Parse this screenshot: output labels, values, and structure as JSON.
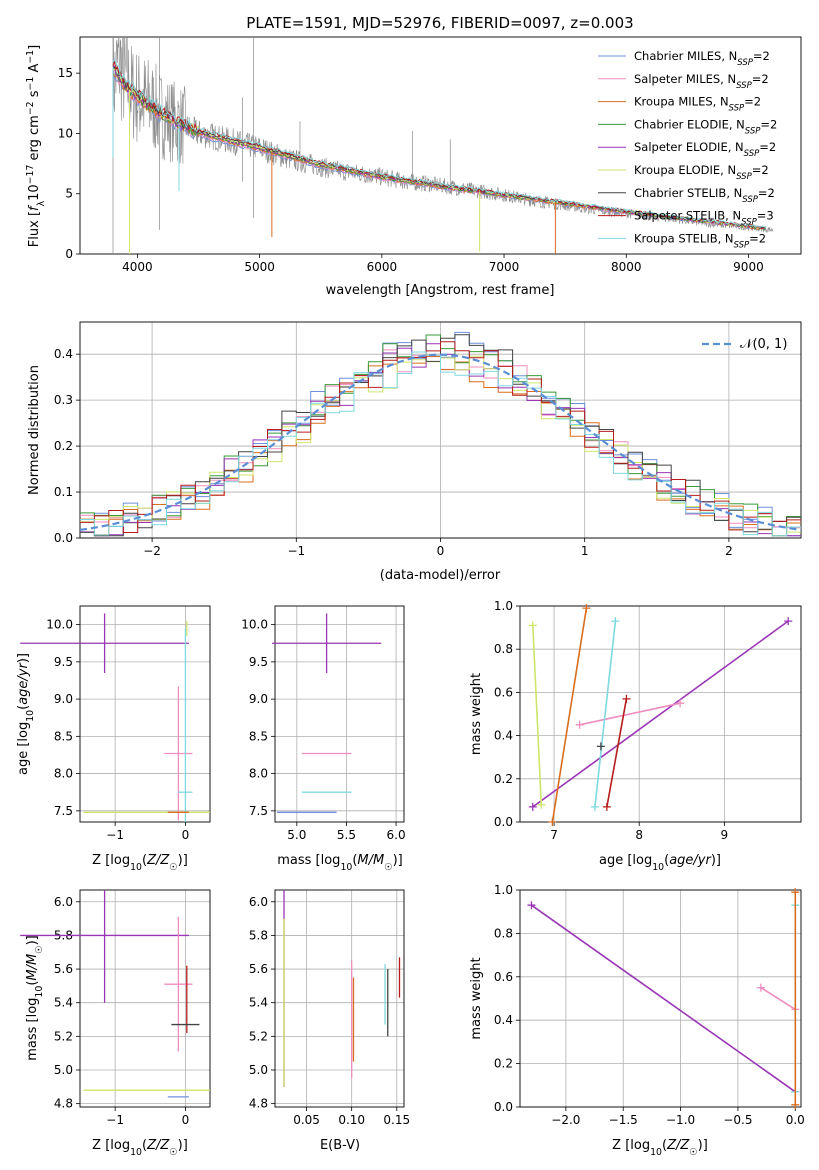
{
  "chart_data": [
    {
      "type": "line",
      "title": "PLATE=1591, MJD=52976, FIBERID=0097, z=0.003",
      "xlabel": "wavelength [Angstrom, rest frame]",
      "ylabel": "Flux [fλ10⁻¹⁷ erg cm⁻² s⁻¹ A⁻¹]",
      "xlim": [
        3530,
        9430
      ],
      "ylim": [
        0,
        18
      ],
      "xticks": [
        4000,
        5000,
        6000,
        7000,
        8000,
        9000
      ],
      "yticks": [
        0,
        5,
        10,
        15
      ],
      "grid": false,
      "legend": "top-right",
      "data_series": {
        "name": "",
        "x": [
          3800,
          3850,
          3900,
          3950,
          4000,
          4100,
          4200,
          4300,
          4400,
          4500,
          4600,
          4700,
          4800,
          4900,
          5000,
          5200,
          5400,
          5600,
          5800,
          6000,
          6200,
          6400,
          6600,
          6800,
          7000,
          7200,
          7400,
          7600,
          7800,
          8000,
          8200,
          8400,
          8600,
          8800,
          9000,
          9200
        ],
        "values": [
          14.0,
          16.0,
          14.5,
          13.5,
          13.0,
          12.5,
          11.5,
          11.0,
          10.5,
          10.0,
          9.8,
          9.5,
          9.3,
          9.0,
          8.8,
          8.0,
          7.5,
          7.0,
          6.7,
          6.4,
          6.0,
          5.8,
          5.5,
          5.2,
          4.9,
          4.5,
          4.2,
          3.9,
          3.6,
          3.4,
          3.1,
          2.9,
          2.6,
          2.4,
          2.2,
          2.0
        ]
      },
      "series": [
        {
          "name": "Chabrier MILES, N_SSP=2",
          "color": "#6f8fdc"
        },
        {
          "name": "Salpeter MILES, N_SSP=2",
          "color": "#f08cbf"
        },
        {
          "name": "Kroupa MILES, N_SSP=2",
          "color": "#d96e1e"
        },
        {
          "name": "Chabrier ELODIE, N_SSP=2",
          "color": "#3a9b3a"
        },
        {
          "name": "Salpeter ELODIE, N_SSP=2",
          "color": "#9a35b5"
        },
        {
          "name": "Kroupa ELODIE, N_SSP=2",
          "color": "#cde66a"
        },
        {
          "name": "Chabrier STELIB, N_SSP=2",
          "color": "#444444"
        },
        {
          "name": "Salpeter STELIB, N_SSP=3",
          "color": "#b71c1c"
        },
        {
          "name": "Kroupa STELIB, N_SSP=2",
          "color": "#7fd9e0"
        }
      ],
      "model_curve": {
        "x": [
          3800,
          3900,
          4000,
          4200,
          4400,
          4600,
          4800,
          5000,
          5500,
          6000,
          6500,
          7000,
          7500,
          8000,
          8500,
          9000,
          9150
        ],
        "values": [
          15.5,
          14.0,
          13.0,
          11.6,
          10.5,
          9.8,
          9.3,
          8.8,
          7.4,
          6.4,
          5.6,
          4.9,
          4.2,
          3.5,
          2.9,
          2.3,
          2.1
        ]
      },
      "annotations": {
        "legend_labels": [
          {
            "base": "Chabrier MILES, N",
            "sub": "SSP",
            "tail": "=2"
          },
          {
            "base": "Salpeter MILES, N",
            "sub": "SSP",
            "tail": "=2"
          },
          {
            "base": "Kroupa MILES, N",
            "sub": "SSP",
            "tail": "=2"
          },
          {
            "base": "Chabrier ELODIE, N",
            "sub": "SSP",
            "tail": "=2"
          },
          {
            "base": "Salpeter ELODIE, N",
            "sub": "SSP",
            "tail": "=2"
          },
          {
            "base": "Kroupa ELODIE, N",
            "sub": "SSP",
            "tail": "=2"
          },
          {
            "base": "Chabrier STELIB, N",
            "sub": "SSP",
            "tail": "=2"
          },
          {
            "base": "Salpeter STELIB, N",
            "sub": "SSP",
            "tail": "=3"
          },
          {
            "base": "Kroupa STELIB, N",
            "sub": "SSP",
            "tail": "=2"
          }
        ]
      }
    },
    {
      "type": "line",
      "title": "",
      "xlabel": "(data-model)/error",
      "ylabel": "Normed distribution",
      "xlim": [
        -2.5,
        2.5
      ],
      "ylim": [
        0,
        0.47
      ],
      "xticks": [
        -2,
        -1,
        0,
        1,
        2
      ],
      "yticks": [
        0.0,
        0.1,
        0.2,
        0.3,
        0.4
      ],
      "grid": true,
      "legend": "top-right",
      "legend_label": "𝒩(0, 1)",
      "gaussian": {
        "name": "N(0,1)",
        "color": "#5a8fd6",
        "style": "dashed"
      },
      "histogram_colors": [
        "#6f8fdc",
        "#f08cbf",
        "#d96e1e",
        "#3a9b3a",
        "#9a35b5",
        "#cde66a",
        "#444444",
        "#b71c1c",
        "#7fd9e0"
      ]
    },
    {
      "type": "scatter",
      "xlabel": "Z [log10(Z/Z☉)]",
      "ylabel": "age  [log10(age/yr)]",
      "xlim": [
        -1.5,
        0.35
      ],
      "ylim": [
        7.35,
        10.25
      ],
      "xticks": [
        -1,
        0
      ],
      "yticks": [
        7.5,
        8.0,
        8.5,
        9.0,
        9.5,
        10.0
      ],
      "grid": true,
      "points": [
        {
          "x": -1.15,
          "y": 9.75,
          "xerr": 1.2,
          "yerr": 0.4,
          "color": "#9a35b5"
        },
        {
          "x": -0.1,
          "y": 8.27,
          "xerr": 0.2,
          "yerr": 0.9,
          "color": "#f08cbf"
        },
        {
          "x": 0.0,
          "y": 7.48,
          "xerr": 1.45,
          "yerr": 0.0,
          "color": "#cde66a"
        },
        {
          "x": 0.02,
          "y": 9.95,
          "xerr": 0.0,
          "yerr": 0.1,
          "color": "#cde66a"
        },
        {
          "x": 0.0,
          "y": 7.75,
          "xerr": 0.1,
          "yerr": 2.2,
          "color": "#7fd9e0"
        },
        {
          "x": -0.1,
          "y": 7.48,
          "xerr": 0.15,
          "yerr": 0.0,
          "color": "#d96e1e"
        }
      ]
    },
    {
      "type": "scatter",
      "xlabel": "mass [log10(M/M☉)]",
      "ylabel": "",
      "xlim": [
        4.78,
        6.08
      ],
      "ylim": [
        7.35,
        10.25
      ],
      "xticks": [
        5.0,
        5.5,
        6.0
      ],
      "yticks": [
        7.5,
        8.0,
        8.5,
        9.0,
        9.5,
        10.0
      ],
      "grid": true,
      "points": [
        {
          "x": 5.3,
          "y": 9.75,
          "xerr": 0.55,
          "yerr": 0.4,
          "color": "#9a35b5"
        },
        {
          "x": 5.3,
          "y": 8.27,
          "xerr": 0.25,
          "yerr": 0.0,
          "color": "#f08cbf"
        },
        {
          "x": 5.3,
          "y": 7.75,
          "xerr": 0.25,
          "yerr": 0.0,
          "color": "#7fd9e0"
        },
        {
          "x": 5.1,
          "y": 7.48,
          "xerr": 0.3,
          "yerr": 0.0,
          "color": "#6f8fdc"
        }
      ]
    },
    {
      "type": "line",
      "xlabel": "age  [log10(age/yr)]",
      "ylabel": "mass weight",
      "xlim": [
        6.6,
        9.9
      ],
      "ylim": [
        0,
        1
      ],
      "xticks": [
        7,
        8,
        9
      ],
      "yticks": [
        0.0,
        0.2,
        0.4,
        0.6,
        0.8,
        1.0
      ],
      "grid": true,
      "series": [
        {
          "name": "Salpeter ELODIE",
          "color": "#9a35b5",
          "x": [
            6.75,
            9.75
          ],
          "values": [
            0.07,
            0.93
          ]
        },
        {
          "name": "Kroupa ELODIE",
          "color": "#cde66a",
          "x": [
            6.75,
            6.85
          ],
          "values": [
            0.91,
            0.08
          ]
        },
        {
          "name": "Kroupa MILES",
          "color": "#d96e1e",
          "x": [
            6.98,
            7.38
          ],
          "values": [
            0.0,
            0.99
          ]
        },
        {
          "name": "Salpeter MILES",
          "color": "#f08cbf",
          "x": [
            7.3,
            8.48
          ],
          "values": [
            0.45,
            0.55
          ]
        },
        {
          "name": "Kroupa STELIB",
          "color": "#7fd9e0",
          "x": [
            7.48,
            7.72
          ],
          "values": [
            0.07,
            0.93
          ]
        },
        {
          "name": "Salpeter STELIB",
          "color": "#b71c1c",
          "x": [
            7.62,
            7.85
          ],
          "values": [
            0.07,
            0.57
          ]
        },
        {
          "name": "Chabrier STELIB",
          "color": "#444444",
          "x": [
            7.55
          ],
          "values": [
            0.35
          ]
        }
      ]
    },
    {
      "type": "scatter",
      "xlabel": "Z [log10(Z/Z☉)]",
      "ylabel": "mass [log10(M/M☉)]",
      "xlim": [
        -1.5,
        0.35
      ],
      "ylim": [
        4.78,
        6.07
      ],
      "xticks": [
        -1,
        0
      ],
      "yticks": [
        4.8,
        5.0,
        5.2,
        5.4,
        5.6,
        5.8,
        6.0
      ],
      "grid": true,
      "points": [
        {
          "x": -1.15,
          "y": 5.8,
          "xerr": 1.2,
          "yerr": 0.4,
          "color": "#9a35b5"
        },
        {
          "x": -0.1,
          "y": 5.51,
          "xerr": 0.2,
          "yerr": 0.4,
          "color": "#f08cbf"
        },
        {
          "x": 0.0,
          "y": 4.88,
          "xerr": 1.45,
          "yerr": 0.0,
          "color": "#cde66a"
        },
        {
          "x": 0.02,
          "y": 5.42,
          "xerr": 0.0,
          "yerr": 0.2,
          "color": "#b71c1c"
        },
        {
          "x": 0.0,
          "y": 5.27,
          "xerr": 0.2,
          "yerr": 0.0,
          "color": "#444444"
        },
        {
          "x": -0.1,
          "y": 4.84,
          "xerr": 0.15,
          "yerr": 0.0,
          "color": "#6f8fdc"
        }
      ]
    },
    {
      "type": "scatter",
      "xlabel": "E(B-V)",
      "ylabel": "",
      "xlim": [
        0.015,
        0.158
      ],
      "ylim": [
        4.78,
        6.07
      ],
      "xticks": [
        0.05,
        0.1,
        0.15
      ],
      "yticks": [
        4.8,
        5.0,
        5.2,
        5.4,
        5.6,
        5.8,
        6.0
      ],
      "grid": true,
      "points": [
        {
          "x": 0.025,
          "y": 5.5,
          "yerr": 0.6,
          "color": "#9a35b5"
        },
        {
          "x": 0.025,
          "y": 5.4,
          "yerr": 0.5,
          "color": "#cde66a"
        },
        {
          "x": 0.1,
          "y": 5.3,
          "yerr": 0.35,
          "color": "#f08cbf"
        },
        {
          "x": 0.102,
          "y": 5.3,
          "yerr": 0.25,
          "color": "#d96e1e"
        },
        {
          "x": 0.137,
          "y": 5.45,
          "yerr": 0.18,
          "color": "#7fd9e0"
        },
        {
          "x": 0.14,
          "y": 5.4,
          "yerr": 0.2,
          "color": "#444444"
        },
        {
          "x": 0.153,
          "y": 5.55,
          "yerr": 0.12,
          "color": "#b71c1c"
        }
      ]
    },
    {
      "type": "line",
      "xlabel": "Z [log10(Z/Z☉)]",
      "ylabel": "mass weight",
      "xlim": [
        -2.4,
        0.05
      ],
      "ylim": [
        0,
        1
      ],
      "xticks": [
        -2.0,
        -1.5,
        -1.0,
        -0.5,
        0.0
      ],
      "yticks": [
        0.0,
        0.2,
        0.4,
        0.6,
        0.8,
        1.0
      ],
      "grid": true,
      "series": [
        {
          "name": "Salpeter ELODIE",
          "color": "#9a35b5",
          "x": [
            -2.3,
            0.0
          ],
          "values": [
            0.93,
            0.07
          ]
        },
        {
          "name": "Salpeter MILES",
          "color": "#f08cbf",
          "x": [
            -0.3,
            0.0
          ],
          "values": [
            0.55,
            0.45
          ]
        },
        {
          "name": "Kroupa STELIB",
          "color": "#7fd9e0",
          "x": [
            0.0,
            0.0
          ],
          "values": [
            0.07,
            0.93
          ]
        },
        {
          "name": "Kroupa MILES",
          "color": "#d96e1e",
          "x": [
            0.0,
            0.0
          ],
          "values": [
            0.01,
            0.99
          ]
        }
      ]
    }
  ]
}
